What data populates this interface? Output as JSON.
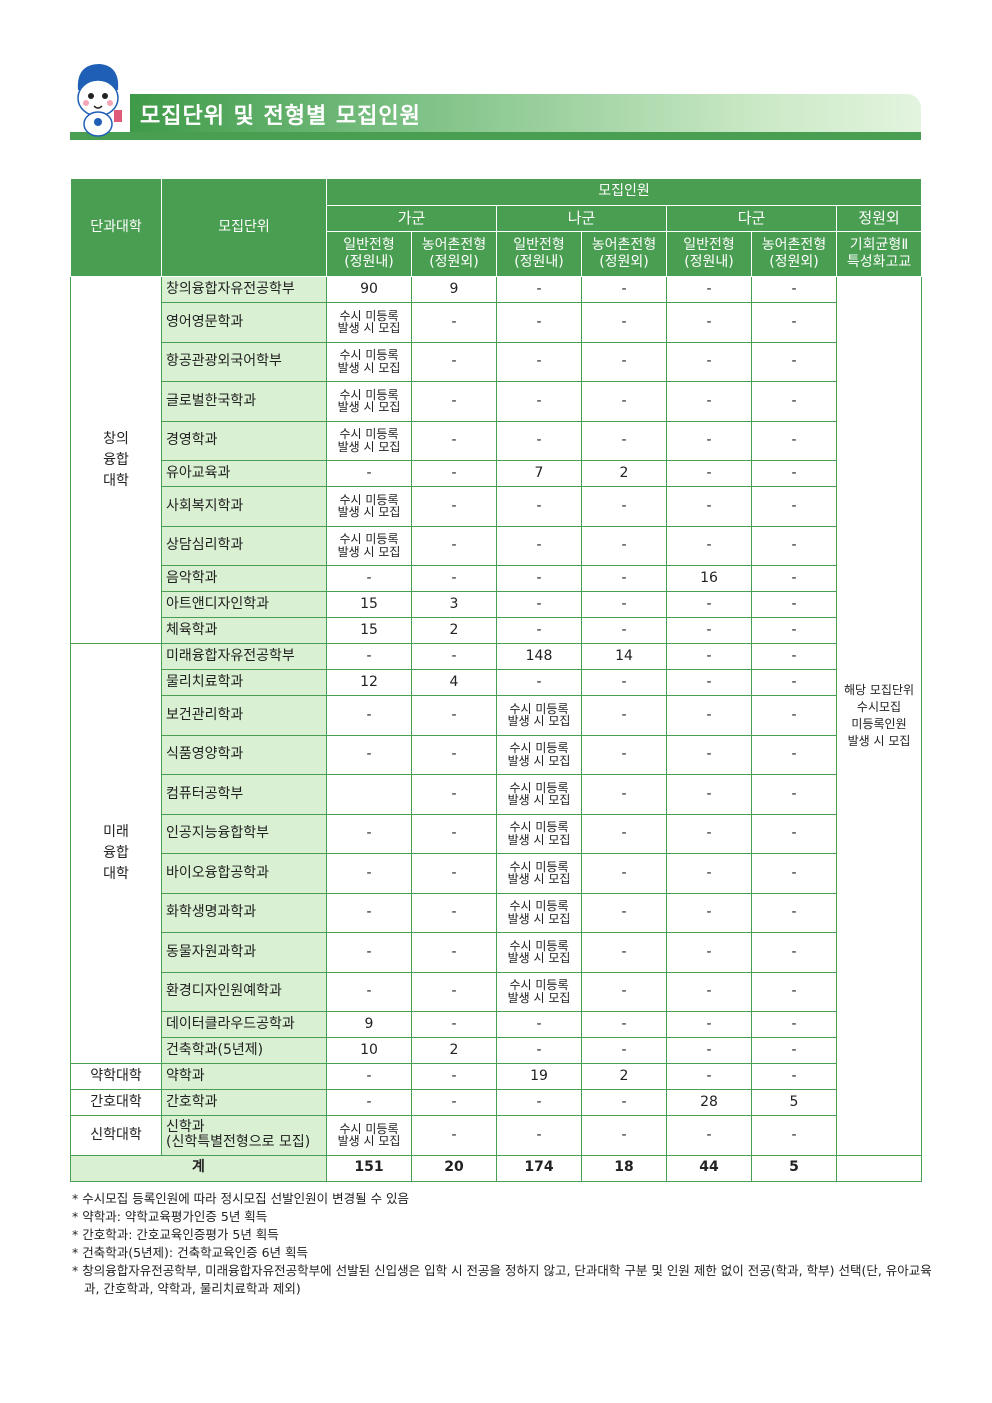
{
  "title": "모집단위 및 전형별 모집인원",
  "colors": {
    "header": "#4a9e52",
    "dept_bg": "#d9f0d2"
  },
  "header": {
    "college": "단과대학",
    "unit": "모집단위",
    "recruit": "모집인원",
    "groups": [
      "가군",
      "나군",
      "다군",
      "정원외"
    ],
    "subs": [
      [
        "일반전형",
        "(정원내)"
      ],
      [
        "농어촌전형",
        "(정원외)"
      ],
      [
        "일반전형",
        "(정원내)"
      ],
      [
        "농어촌전형",
        "(정원외)"
      ],
      [
        "일반전형",
        "(정원내)"
      ],
      [
        "농어촌전형",
        "(정원외)"
      ],
      [
        "기회균형Ⅱ",
        "특성화고교"
      ]
    ]
  },
  "extra_note": "해당 모집단위 수시모집 미등록인원 발생 시 모집",
  "tbd": "수시 미등록 발생 시 모집",
  "colleges": [
    {
      "name": "창의 융합 대학",
      "rows": [
        [
          "창의융합자유전공학부",
          "90",
          "9",
          "-",
          "-",
          "-",
          "-"
        ],
        [
          "영어영문학과",
          "TBD",
          "-",
          "-",
          "-",
          "-",
          "-"
        ],
        [
          "항공관광외국어학부",
          "TBD",
          "-",
          "-",
          "-",
          "-",
          "-"
        ],
        [
          "글로벌한국학과",
          "TBD",
          "-",
          "-",
          "-",
          "-",
          "-"
        ],
        [
          "경영학과",
          "TBD",
          "-",
          "-",
          "-",
          "-",
          "-"
        ],
        [
          "유아교육과",
          "-",
          "-",
          "7",
          "2",
          "-",
          "-"
        ],
        [
          "사회복지학과",
          "TBD",
          "-",
          "-",
          "-",
          "-",
          "-"
        ],
        [
          "상담심리학과",
          "TBD",
          "-",
          "-",
          "-",
          "-",
          "-"
        ],
        [
          "음악학과",
          "-",
          "-",
          "-",
          "-",
          "16",
          "-"
        ],
        [
          "아트앤디자인학과",
          "15",
          "3",
          "-",
          "-",
          "-",
          "-"
        ],
        [
          "체육학과",
          "15",
          "2",
          "-",
          "-",
          "-",
          "-"
        ]
      ]
    },
    {
      "name": "미래 융합 대학",
      "rows": [
        [
          "미래융합자유전공학부",
          "-",
          "-",
          "148",
          "14",
          "-",
          "-"
        ],
        [
          "물리치료학과",
          "12",
          "4",
          "-",
          "-",
          "-",
          "-"
        ],
        [
          "보건관리학과",
          "-",
          "-",
          "TBD",
          "-",
          "-",
          "-"
        ],
        [
          "식품영양학과",
          "-",
          "-",
          "TBD",
          "-",
          "-",
          "-"
        ],
        [
          "컴퓨터공학부",
          "",
          "-",
          "TBD",
          "-",
          "-",
          "-"
        ],
        [
          "인공지능융합학부",
          "-",
          "-",
          "TBD",
          "-",
          "-",
          "-"
        ],
        [
          "바이오융합공학과",
          "-",
          "-",
          "TBD",
          "-",
          "-",
          "-"
        ],
        [
          "화학생명과학과",
          "-",
          "-",
          "TBD",
          "-",
          "-",
          "-"
        ],
        [
          "동물자원과학과",
          "-",
          "-",
          "TBD",
          "-",
          "-",
          "-"
        ],
        [
          "환경디자인원예학과",
          "-",
          "-",
          "TBD",
          "-",
          "-",
          "-"
        ],
        [
          "데이터클라우드공학과",
          "9",
          "-",
          "-",
          "-",
          "-",
          "-"
        ],
        [
          "건축학과(5년제)",
          "10",
          "2",
          "-",
          "-",
          "-",
          "-"
        ]
      ]
    },
    {
      "name": "약학대학",
      "rows": [
        [
          "약학과",
          "-",
          "-",
          "19",
          "2",
          "-",
          "-"
        ]
      ]
    },
    {
      "name": "간호대학",
      "rows": [
        [
          "간호학과",
          "-",
          "-",
          "-",
          "-",
          "28",
          "5"
        ]
      ]
    },
    {
      "name": "신학대학",
      "rows": [
        [
          "신학과 (신학특별전형으로 모집)",
          "TBD",
          "-",
          "-",
          "-",
          "-",
          "-"
        ]
      ]
    }
  ],
  "total": {
    "label": "계",
    "values": [
      "151",
      "20",
      "174",
      "18",
      "44",
      "5",
      ""
    ]
  },
  "notes": [
    "* 수시모집 등록인원에 따라 정시모집 선발인원이 변경될 수 있음",
    "* 약학과: 약학교육평가인증 5년 획득",
    "* 간호학과: 간호교육인증평가 5년 획득",
    "* 건축학과(5년제): 건축학교육인증 6년 획득",
    "* 창의융합자유전공학부, 미래융합자유전공학부에 선발된 신입생은 입학 시 전공을 정하지 않고, 단과대학 구분 및 인원 제한 없이 전공(학과, 학부) 선택(단, 유아교육과, 간호학과, 약학과, 물리치료학과 제외)"
  ]
}
